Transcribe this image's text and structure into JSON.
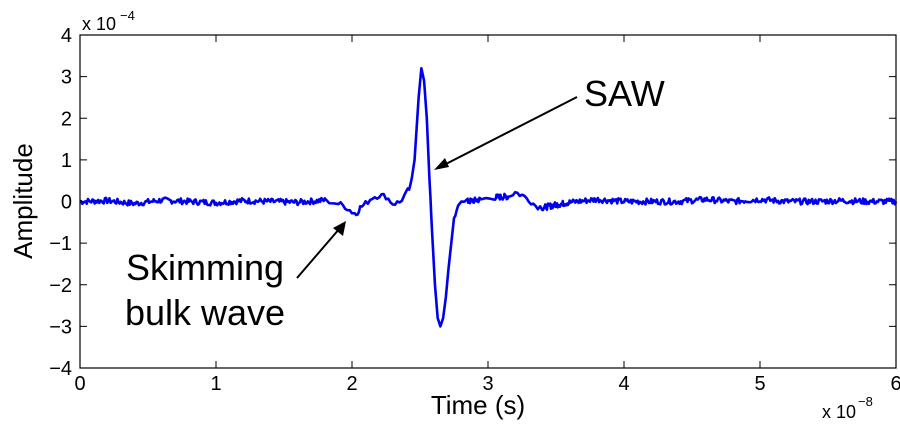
{
  "chart_data": {
    "type": "line",
    "title": "",
    "xlabel": "Time (s)",
    "ylabel": "Amplitude",
    "x_multiplier_label": "x 10",
    "x_exponent": "−8",
    "y_multiplier_label": "x 10",
    "y_exponent": "−4",
    "xlim": [
      0,
      6
    ],
    "ylim": [
      -4,
      4
    ],
    "xticks": [
      "0",
      "1",
      "2",
      "3",
      "4",
      "5",
      "6"
    ],
    "yticks": [
      "−4",
      "−3",
      "−2",
      "−1",
      "0",
      "1",
      "2",
      "3",
      "4"
    ],
    "grid": false,
    "legend": false,
    "colors": {
      "series": "#0000ee",
      "axes": "#000000",
      "annotation": "#000000"
    },
    "series": [
      {
        "x": [
          0,
          0.2,
          0.4,
          0.6,
          0.8,
          1.0,
          1.2,
          1.4,
          1.6,
          1.8,
          1.9,
          1.95,
          2.0,
          2.03,
          2.06,
          2.1,
          2.15,
          2.2,
          2.25,
          2.3,
          2.35,
          2.4,
          2.43,
          2.46,
          2.49,
          2.51,
          2.53,
          2.55,
          2.57,
          2.59,
          2.61,
          2.63,
          2.65,
          2.67,
          2.69,
          2.71,
          2.73,
          2.75,
          2.78,
          2.85,
          2.95,
          3.05,
          3.15,
          3.2,
          3.25,
          3.3,
          3.35,
          3.4,
          3.5,
          3.6,
          3.8,
          4.0,
          4.2,
          4.4,
          4.6,
          4.8,
          5.0,
          5.2,
          5.4,
          5.6,
          5.8,
          6.0
        ],
        "y": [
          0.0,
          0.02,
          -0.05,
          0.03,
          0.0,
          -0.03,
          0.02,
          0.0,
          -0.02,
          0.03,
          -0.05,
          -0.12,
          -0.25,
          -0.3,
          -0.15,
          -0.05,
          0.1,
          0.15,
          0.12,
          -0.05,
          -0.02,
          0.2,
          0.35,
          1.0,
          2.5,
          3.2,
          2.9,
          2.0,
          0.5,
          -0.8,
          -2.0,
          -2.8,
          -3.0,
          -2.8,
          -2.3,
          -1.6,
          -1.0,
          -0.4,
          -0.05,
          0.0,
          0.05,
          0.1,
          0.12,
          0.22,
          0.15,
          0.05,
          -0.1,
          -0.15,
          -0.08,
          -0.02,
          0.05,
          0.0,
          0.0,
          0.0,
          0.05,
          0.0,
          0.05,
          0.0,
          0.0,
          0.02,
          0.0,
          0.0
        ]
      }
    ],
    "annotations": [
      {
        "text": "SAW"
      },
      {
        "text_lines": [
          "Skimming",
          "bulk wave"
        ]
      }
    ]
  }
}
